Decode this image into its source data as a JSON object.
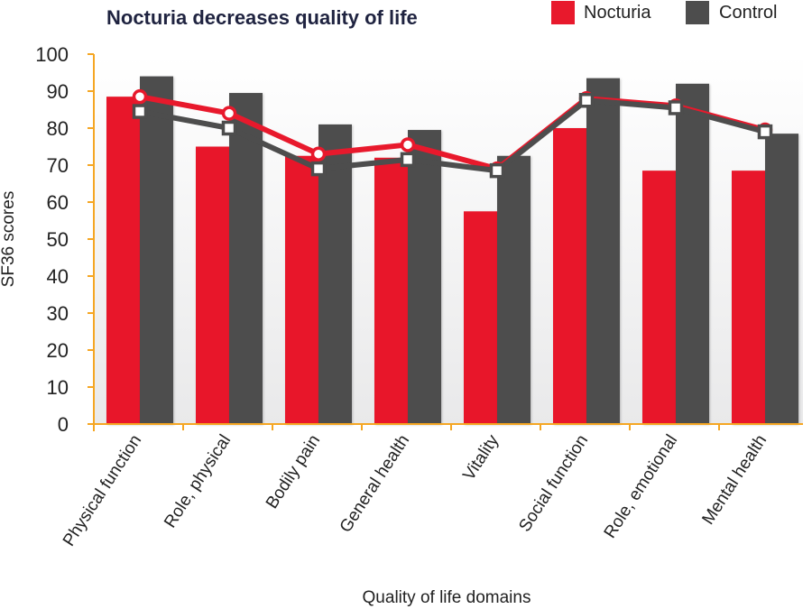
{
  "chart_data": {
    "type": "bar",
    "title": "Nocturia decreases quality of life",
    "xlabel": "Quality of life domains",
    "ylabel": "SF36 scores",
    "ylim": [
      0,
      100
    ],
    "yticks": [
      0,
      10,
      20,
      30,
      40,
      50,
      60,
      70,
      80,
      90,
      100
    ],
    "categories": [
      "Physical function",
      "Role, physical",
      "Bodily pain",
      "General health",
      "Vitality",
      "Social function",
      "Role, emotional",
      "Mental health"
    ],
    "series": [
      {
        "name": "Nocturia",
        "color": "#e8192c",
        "values": [
          88.5,
          75,
          72.5,
          72,
          57.5,
          80,
          68.5,
          68.5
        ],
        "line_values": [
          88.5,
          84,
          73,
          75.5,
          69,
          88,
          86,
          79.5
        ]
      },
      {
        "name": "Control",
        "color": "#4d4d4d",
        "values": [
          94,
          89.5,
          81,
          79.5,
          72.5,
          93.5,
          92,
          78.5
        ],
        "line_values": [
          84.5,
          80,
          69,
          71.5,
          68.5,
          87.5,
          85.5,
          79
        ]
      }
    ],
    "grid": false,
    "legend_position": "top-right",
    "axis_color": "#f5a623"
  }
}
